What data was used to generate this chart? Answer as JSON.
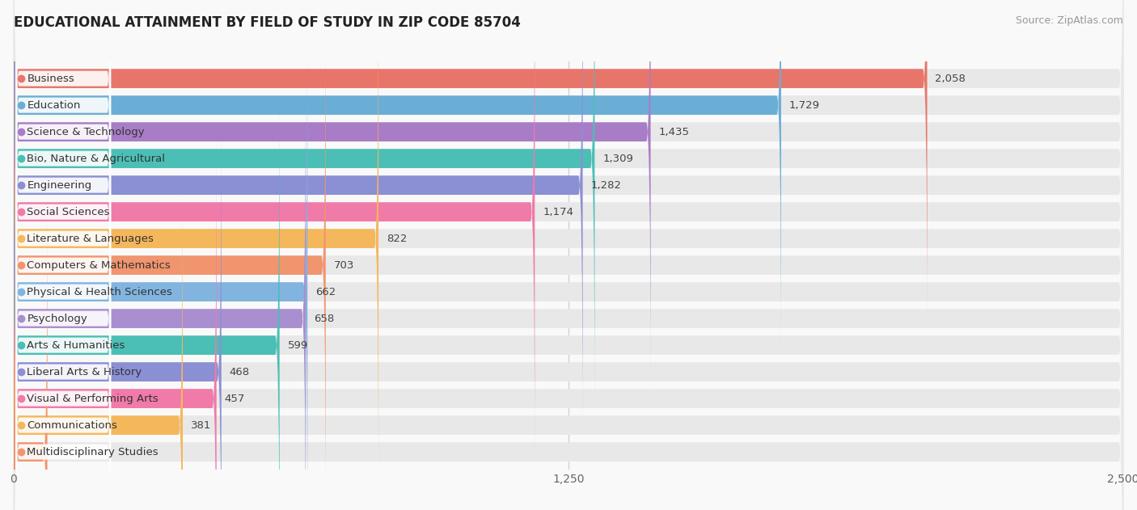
{
  "title": "EDUCATIONAL ATTAINMENT BY FIELD OF STUDY IN ZIP CODE 85704",
  "source": "Source: ZipAtlas.com",
  "categories": [
    "Business",
    "Education",
    "Science & Technology",
    "Bio, Nature & Agricultural",
    "Engineering",
    "Social Sciences",
    "Literature & Languages",
    "Computers & Mathematics",
    "Physical & Health Sciences",
    "Psychology",
    "Arts & Humanities",
    "Liberal Arts & History",
    "Visual & Performing Arts",
    "Communications",
    "Multidisciplinary Studies"
  ],
  "values": [
    2058,
    1729,
    1435,
    1309,
    1282,
    1174,
    822,
    703,
    662,
    658,
    599,
    468,
    457,
    381,
    76
  ],
  "bar_colors": [
    "#E8756A",
    "#6AAED6",
    "#A97CC7",
    "#4BBFB5",
    "#8B8FD4",
    "#F07AA8",
    "#F5B75C",
    "#F0956E",
    "#82B4E0",
    "#A98FD0",
    "#4BBFB5",
    "#8B8FD4",
    "#F07AA8",
    "#F5B75C",
    "#F0956E"
  ],
  "xlim": [
    0,
    2500
  ],
  "xticks": [
    0,
    1250,
    2500
  ],
  "background_color": "#f9f9f9",
  "bar_bg_color": "#e8e8e8",
  "title_fontsize": 12,
  "value_fontsize": 9.5,
  "label_fontsize": 9.5
}
